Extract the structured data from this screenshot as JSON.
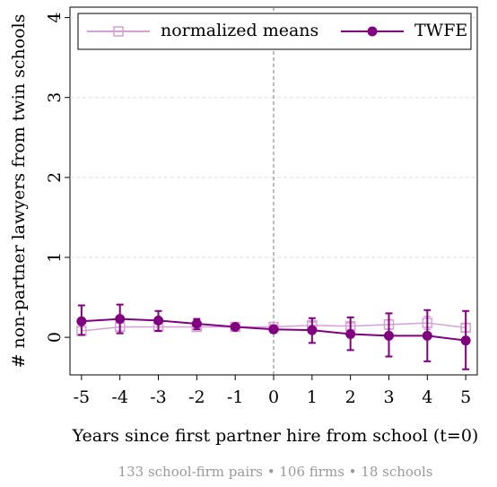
{
  "chart_data": {
    "type": "errorbar-line",
    "x_label": "Years since first partner hire from school (t=0)",
    "y_label": "# non-partner lawyers from twin schools",
    "note": "133 school-firm pairs  •  106 firms  •  18 schools",
    "x": [
      -5,
      -4,
      -3,
      -2,
      -1,
      0,
      1,
      2,
      3,
      4,
      5
    ],
    "xlim": [
      -5.3,
      5.3
    ],
    "xticks": [
      -5,
      -4,
      -3,
      -2,
      -1,
      0,
      1,
      2,
      3,
      4,
      5
    ],
    "ylim": [
      -0.47,
      4.13
    ],
    "yticks": [
      0,
      1,
      2,
      3,
      4
    ],
    "grid": true,
    "vline": 0,
    "legend": "top",
    "series": [
      {
        "name": "normalized means",
        "color": "#d69fd6",
        "marker": "square",
        "values": [
          0.08,
          0.13,
          0.13,
          0.13,
          0.13,
          0.13,
          0.15,
          0.14,
          0.16,
          0.18,
          0.12
        ],
        "lower": [
          0.03,
          0.08,
          0.09,
          0.1,
          0.11,
          0.1,
          0.11,
          0.1,
          0.1,
          0.1,
          0.07
        ],
        "upper": [
          0.13,
          0.18,
          0.17,
          0.16,
          0.15,
          0.16,
          0.19,
          0.18,
          0.22,
          0.26,
          0.17
        ]
      },
      {
        "name": "TWFE",
        "color": "#800080",
        "marker": "circle",
        "values": [
          0.2,
          0.23,
          0.21,
          0.17,
          0.13,
          0.1,
          0.09,
          0.04,
          0.02,
          0.02,
          -0.04
        ],
        "lower": [
          0.03,
          0.05,
          0.08,
          0.1,
          0.11,
          0.06,
          -0.07,
          -0.16,
          -0.24,
          -0.3,
          -0.4
        ],
        "upper": [
          0.4,
          0.41,
          0.33,
          0.23,
          0.15,
          0.14,
          0.24,
          0.25,
          0.3,
          0.34,
          0.33
        ]
      }
    ]
  }
}
